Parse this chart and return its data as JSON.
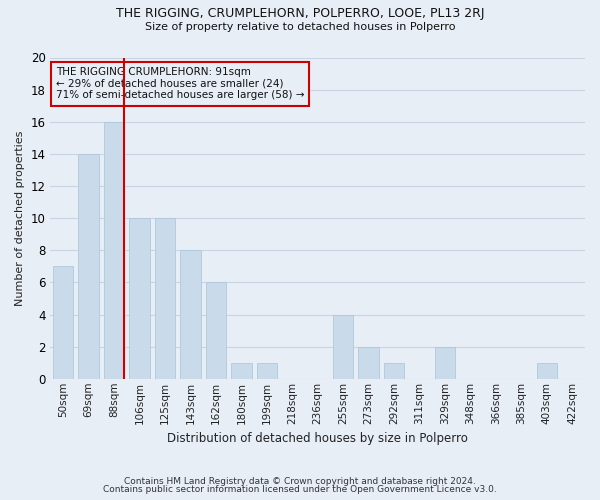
{
  "title": "THE RIGGING, CRUMPLEHORN, POLPERRO, LOOE, PL13 2RJ",
  "subtitle": "Size of property relative to detached houses in Polperro",
  "xlabel": "Distribution of detached houses by size in Polperro",
  "ylabel": "Number of detached properties",
  "categories": [
    "50sqm",
    "69sqm",
    "88sqm",
    "106sqm",
    "125sqm",
    "143sqm",
    "162sqm",
    "180sqm",
    "199sqm",
    "218sqm",
    "236sqm",
    "255sqm",
    "273sqm",
    "292sqm",
    "311sqm",
    "329sqm",
    "348sqm",
    "366sqm",
    "385sqm",
    "403sqm",
    "422sqm"
  ],
  "values": [
    7,
    14,
    16,
    10,
    10,
    8,
    6,
    1,
    1,
    0,
    0,
    4,
    2,
    1,
    0,
    2,
    0,
    0,
    0,
    1,
    0
  ],
  "bar_color": "#c9daea",
  "bar_edge_color": "#a8c4d8",
  "grid_color": "#c8d4e4",
  "background_color": "#e8eef6",
  "annotation_line1": "THE RIGGING CRUMPLEHORN: 91sqm",
  "annotation_line2": "← 29% of detached houses are smaller (24)",
  "annotation_line3": "71% of semi-detached houses are larger (58) →",
  "annotation_box_color": "#cc0000",
  "vline_x_index": 2,
  "vline_color": "#cc0000",
  "ylim": [
    0,
    20
  ],
  "yticks": [
    0,
    2,
    4,
    6,
    8,
    10,
    12,
    14,
    16,
    18,
    20
  ],
  "footnote1": "Contains HM Land Registry data © Crown copyright and database right 2024.",
  "footnote2": "Contains public sector information licensed under the Open Government Licence v3.0."
}
